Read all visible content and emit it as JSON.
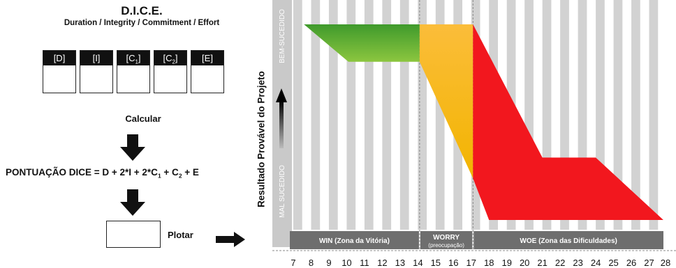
{
  "title": "D.I.C.E.",
  "subtitle": "Duration / Integrity / Commitment / Effort",
  "variables": [
    {
      "label": "[D]",
      "main": "[D]",
      "sub": ""
    },
    {
      "label": "[I]",
      "main": "[I]",
      "sub": ""
    },
    {
      "label": "[C1]",
      "main": "[C",
      "sub": "1",
      "close": "]"
    },
    {
      "label": "[C2]",
      "main": "[C",
      "sub": "2",
      "close": "]"
    },
    {
      "label": "[E]",
      "main": "[E]",
      "sub": ""
    }
  ],
  "calc_label": "Calcular",
  "formula": {
    "prefix": "PONTUAÇÃO DICE = D + 2*I + 2*C",
    "sub1": "1",
    "middle": " + C",
    "sub2": "2",
    "suffix": " + E"
  },
  "plot_label": "Plotar",
  "y_axis_label": "Resultado  Provável do Projeto",
  "colors": {
    "green": "#6cae3a",
    "yellow": "#f7c11f",
    "red": "#f2171e",
    "stripe": "#d2d2d2",
    "band": "#6e6e6e"
  },
  "chart_data": {
    "type": "area",
    "x_ticks": [
      7,
      8,
      9,
      10,
      11,
      12,
      13,
      14,
      15,
      16,
      17,
      18,
      19,
      20,
      21,
      22,
      23,
      24,
      25,
      26,
      27,
      28
    ],
    "xlim": [
      7,
      28
    ],
    "y_top_label": "BEM-SUCEDIDO",
    "y_bottom_label": "MAL SUCEDIDO",
    "zones": [
      {
        "name": "WIN (Zona da Vitória)",
        "sub": "",
        "start": 7,
        "end": 14.1,
        "color": "green",
        "upper": [
          [
            7.6,
            1.0
          ],
          [
            14.1,
            1.0
          ]
        ],
        "lower": [
          [
            7.6,
            1.0
          ],
          [
            10.1,
            0.82
          ],
          [
            14.1,
            0.82
          ]
        ]
      },
      {
        "name": "WORRY",
        "sub": "(preocupação)",
        "start": 14.1,
        "end": 17.1,
        "color": "yellow",
        "upper": [
          [
            14.1,
            1.0
          ],
          [
            17.1,
            1.0
          ]
        ],
        "lower": [
          [
            14.1,
            0.82
          ],
          [
            17.1,
            0.26
          ]
        ]
      },
      {
        "name": "WOE (Zona das Dificuldades)",
        "sub": "",
        "start": 17.1,
        "end": 28,
        "color": "red",
        "upper": [
          [
            17.1,
            1.0
          ],
          [
            21.0,
            0.36
          ],
          [
            24.0,
            0.36
          ],
          [
            27.8,
            0.06
          ]
        ],
        "lower": [
          [
            17.1,
            0.26
          ],
          [
            18.0,
            0.06
          ],
          [
            27.8,
            0.06
          ]
        ]
      }
    ]
  }
}
